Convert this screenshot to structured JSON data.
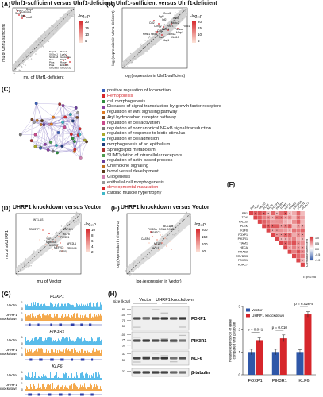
{
  "figure": {
    "panel_letters": [
      "(A)",
      "(B)",
      "(C)",
      "(D)",
      "(E)",
      "(F)",
      "(G)",
      "(H)"
    ]
  },
  "panel_a": {
    "title": "Uhrf1-sufficient versus Uhrf1-deficient",
    "xlabel": "mu of Uhrf1-deficient",
    "ylabel": "mu of Uhrf1-sufficient",
    "legend_title": "-log₁₀p",
    "legend_ticks": [
      "20",
      "15",
      "10",
      "5"
    ],
    "top_genes": [
      "Tug4",
      "Col10a1",
      "Bmp4",
      "Sox5",
      "Itgbl",
      "Foxa2"
    ],
    "bottom_genes": [
      "Nupr1",
      "Rora1",
      "Slc5a11",
      "Lgals3",
      "Slc41a3",
      "Gadd45a",
      "Pun",
      "Trib3",
      "Ptpa",
      "Rasa4",
      "Piga",
      "Eif2ak3",
      "Gm2835",
      "Gm20732"
    ]
  },
  "panel_b": {
    "title": "Uhrf1-sufficient versus Uhrf1-deficient",
    "xlabel": "log₂(expression in Uhrf1-sufficient)",
    "ylabel": "log₂(expression in Uhrf1-deficient)",
    "legend_title": "-log₁₀p",
    "legend_ticks": [
      "20",
      "15",
      "10",
      "5"
    ],
    "genes": [
      "Ccnd1",
      "Wnt5",
      "Fgf2",
      "Igf2",
      "Ccl2",
      "Nfatc2",
      "Ifi27",
      "Ccng2",
      "Pik3ca",
      "Foxo1",
      "Pik3r1",
      "Cdk2",
      "Mmp2",
      "Cdkn1a",
      "Nfkb1",
      "Wnt10",
      "Pax7",
      "Jag1",
      "Mmd1"
    ]
  },
  "panel_c": {
    "go_terms": [
      {
        "label": "positive regulation of locomotion",
        "color": "#3a5fb8",
        "red": false
      },
      {
        "label": "Hemopoiesis",
        "color": "#d6262b",
        "red": true
      },
      {
        "label": "cell morphogenesis",
        "color": "#2e8c3e",
        "red": false
      },
      {
        "label": "Diseases of signal transduction by growth factor receptors",
        "color": "#8a3fa0",
        "red": false
      },
      {
        "label": "regulation of Wnt signaling pathway",
        "color": "#e07a1f",
        "red": false
      },
      {
        "label": "Aryl hydrocarbon receptor pathway",
        "color": "#7b4a2a",
        "red": false
      },
      {
        "label": "regulation of cell activation",
        "color": "#c84a8c",
        "red": false
      },
      {
        "label": "regulation of noncanonical NF-κB signal transduction",
        "color": "#777777",
        "red": false
      },
      {
        "label": "regulation of response to biotic stimulus",
        "color": "#a9a92a",
        "red": false
      },
      {
        "label": "regulation of cell adhesion",
        "color": "#2aa7b5",
        "red": false
      },
      {
        "label": "morphogenesis of an epithelium",
        "color": "#1e3a7a",
        "red": false
      },
      {
        "label": "Sphingolipid metabolism",
        "color": "#a83232",
        "red": false
      },
      {
        "label": "SUMOylation of intracellular receptors",
        "color": "#4f9a4f",
        "red": false
      },
      {
        "label": "regulation of actin-based process",
        "color": "#6a3d9a",
        "red": false
      },
      {
        "label": "Chemokine signaling",
        "color": "#c07020",
        "red": false
      },
      {
        "label": "blood vessel development",
        "color": "#5a3a1a",
        "red": false
      },
      {
        "label": "Gliogenesis",
        "color": "#d07fb0",
        "red": false
      },
      {
        "label": "epithelial cell morphogenesis",
        "color": "#999999",
        "red": false
      },
      {
        "label": "developmental maturation",
        "color": "#d6262b",
        "red": true
      },
      {
        "label": "cardiac muscle hypertrophy",
        "color": "#3fb8c8",
        "red": false
      }
    ]
  },
  "panel_d": {
    "title": "UHRF1 knockdown versus Vector",
    "xlabel": "mu of Vector",
    "ylabel": "mu of shUHRF1",
    "legend_title": "-log₁₀p",
    "legend_ticks": [
      "10",
      "8",
      "6",
      "4",
      "2"
    ],
    "genes": [
      "WT1-AS",
      "ZNF461",
      "RBM3YP1",
      "KLF6",
      "PIK3R1",
      "YAP1",
      "MIR1302",
      "NFE2L1",
      "UGCRT",
      "MEF2C",
      "TRNAL6",
      "IGF1R"
    ]
  },
  "panel_e": {
    "title": "UHRF1 knockdown versus Vector",
    "xlabel": "log₂(expression in Vector)",
    "ylabel": "log₂(expression in shUHRF1)",
    "legend_title": "-log₁₀p",
    "legend_ticks": [
      "200",
      "150",
      "100",
      "50"
    ],
    "genes": [
      "BCL11B",
      "PIK3CA",
      "PCNA",
      "CCND1",
      "NFATC2",
      "CASP4",
      "MTOR",
      "BCL2"
    ]
  },
  "panel_f": {
    "genes": [
      "RB1",
      "TOX",
      "PALLD",
      "PLEK",
      "KLF6",
      "FOXP1",
      "PIK3R1",
      "TIAM1",
      "HECA",
      "RRAS2",
      "CRYBG3",
      "FOXO1",
      "HDAC7"
    ],
    "legend_title": "Correlation coefficient",
    "legend_ticks": [
      "1.0",
      "0.5",
      "0.0",
      "-0.5",
      "-1.0"
    ],
    "note": "•: p<0.05"
  },
  "panel_g": {
    "loci": [
      {
        "gene": "FOXP1",
        "tracks": [
          "Vector",
          "UHRF1 knockdown"
        ]
      },
      {
        "gene": "PIK3R1",
        "tracks": [
          "Vector",
          "UHRF1 knockdown"
        ]
      },
      {
        "gene": "KLF6",
        "tracks": [
          "Vector",
          "UHRF1 knockdown"
        ]
      }
    ],
    "scale_labels": [
      "1",
      "0"
    ]
  },
  "panel_h": {
    "size_header": "Size (kDa)",
    "sizes": [
      "180",
      "100",
      "75",
      "50",
      "100",
      "75",
      "50",
      "37",
      "50",
      "37"
    ],
    "lane_groups": [
      "Vector",
      "UHRF1 knockdown"
    ],
    "bands": [
      "FOXP1",
      "PIK3R1",
      "KLF6",
      "β-tubulin"
    ],
    "chart_data": {
      "type": "bar",
      "categories": [
        "FOXP1",
        "PIK3R1",
        "KLF6"
      ],
      "series": [
        {
          "name": "Vector",
          "values": [
            1.0,
            1.0,
            1.0
          ],
          "color": "#2f57a8"
        },
        {
          "name": "UHRF1 knockdown",
          "values": [
            1.52,
            1.6,
            2.65
          ],
          "color": "#d6262b"
        }
      ],
      "errors": [
        [
          0.12,
          0.12,
          0.1
        ],
        [
          0.1,
          0.15,
          0.12
        ]
      ],
      "ylabel": "Relative expression of gene compared with β-tubulin",
      "ylim": [
        0,
        3
      ],
      "yticks": [
        "0",
        "1",
        "2",
        "3"
      ],
      "pvalues": [
        "p = 0.041",
        "p = 0.010",
        "p = 6.02e-4"
      ],
      "legend_position": "top-left"
    }
  }
}
